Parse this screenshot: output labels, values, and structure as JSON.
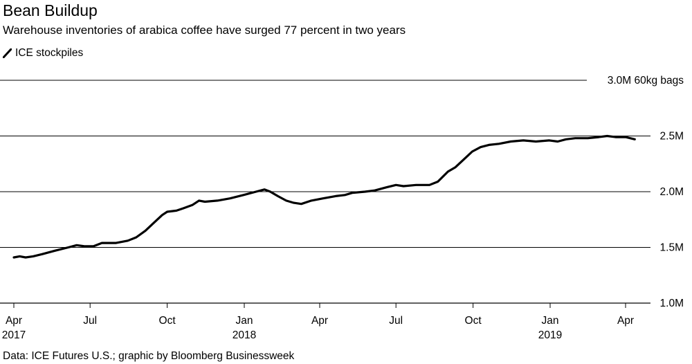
{
  "header": {
    "title": "Bean Buildup",
    "subtitle": "Warehouse inventories of arabica coffee have surged 77 percent in two years"
  },
  "legend": {
    "label": "ICE stockpiles",
    "color": "#000000",
    "icon": "line-swatch-icon"
  },
  "source": "Data: ICE Futures U.S.; graphic by Bloomberg Businessweek",
  "chart_data": {
    "type": "line",
    "title": "Bean Buildup",
    "subtitle": "Warehouse inventories of arabica coffee have surged 77 percent in two years",
    "ylim": [
      1.0,
      3.0
    ],
    "y_ticks": [
      {
        "value": 3.0,
        "label": "3.0M 60kg bags"
      },
      {
        "value": 2.5,
        "label": "2.5M"
      },
      {
        "value": 2.0,
        "label": "2.0M"
      },
      {
        "value": 1.5,
        "label": "1.5M"
      },
      {
        "value": 1.0,
        "label": "1.0M"
      }
    ],
    "x_ticks": [
      {
        "date": "2017-04",
        "label": "Apr",
        "year": "2017"
      },
      {
        "date": "2017-07",
        "label": "Jul",
        "year": ""
      },
      {
        "date": "2017-10",
        "label": "Oct",
        "year": ""
      },
      {
        "date": "2018-01",
        "label": "Jan",
        "year": "2018"
      },
      {
        "date": "2018-04",
        "label": "Apr",
        "year": ""
      },
      {
        "date": "2018-07",
        "label": "Jul",
        "year": ""
      },
      {
        "date": "2018-10",
        "label": "Oct",
        "year": ""
      },
      {
        "date": "2019-01",
        "label": "Jan",
        "year": "2019"
      },
      {
        "date": "2019-04",
        "label": "Apr",
        "year": ""
      }
    ],
    "grid": true,
    "legend_position": "top-left",
    "series": [
      {
        "name": "ICE stockpiles",
        "color": "#000000",
        "points": [
          [
            "2017-04-01",
            1.41
          ],
          [
            "2017-04-08",
            1.42
          ],
          [
            "2017-04-15",
            1.41
          ],
          [
            "2017-04-24",
            1.42
          ],
          [
            "2017-05-05",
            1.44
          ],
          [
            "2017-05-20",
            1.47
          ],
          [
            "2017-06-05",
            1.5
          ],
          [
            "2017-06-15",
            1.52
          ],
          [
            "2017-06-25",
            1.51
          ],
          [
            "2017-07-05",
            1.51
          ],
          [
            "2017-07-15",
            1.54
          ],
          [
            "2017-08-01",
            1.54
          ],
          [
            "2017-08-15",
            1.56
          ],
          [
            "2017-08-25",
            1.59
          ],
          [
            "2017-09-05",
            1.65
          ],
          [
            "2017-09-15",
            1.72
          ],
          [
            "2017-09-25",
            1.79
          ],
          [
            "2017-10-01",
            1.82
          ],
          [
            "2017-10-12",
            1.83
          ],
          [
            "2017-10-20",
            1.85
          ],
          [
            "2017-10-31",
            1.88
          ],
          [
            "2017-11-08",
            1.92
          ],
          [
            "2017-11-15",
            1.91
          ],
          [
            "2017-11-30",
            1.92
          ],
          [
            "2017-12-15",
            1.94
          ],
          [
            "2017-12-31",
            1.97
          ],
          [
            "2018-01-15",
            2.0
          ],
          [
            "2018-01-25",
            2.02
          ],
          [
            "2018-02-01",
            2.0
          ],
          [
            "2018-02-10",
            1.96
          ],
          [
            "2018-02-20",
            1.92
          ],
          [
            "2018-03-01",
            1.9
          ],
          [
            "2018-03-10",
            1.89
          ],
          [
            "2018-03-22",
            1.92
          ],
          [
            "2018-04-05",
            1.94
          ],
          [
            "2018-04-20",
            1.96
          ],
          [
            "2018-05-01",
            1.97
          ],
          [
            "2018-05-10",
            1.99
          ],
          [
            "2018-05-25",
            2.0
          ],
          [
            "2018-06-05",
            2.01
          ],
          [
            "2018-06-20",
            2.04
          ],
          [
            "2018-07-01",
            2.06
          ],
          [
            "2018-07-10",
            2.05
          ],
          [
            "2018-07-25",
            2.06
          ],
          [
            "2018-08-10",
            2.06
          ],
          [
            "2018-08-20",
            2.09
          ],
          [
            "2018-09-01",
            2.18
          ],
          [
            "2018-09-10",
            2.22
          ],
          [
            "2018-09-20",
            2.29
          ],
          [
            "2018-09-30",
            2.36
          ],
          [
            "2018-10-10",
            2.4
          ],
          [
            "2018-10-20",
            2.42
          ],
          [
            "2018-11-01",
            2.43
          ],
          [
            "2018-11-15",
            2.45
          ],
          [
            "2018-11-30",
            2.46
          ],
          [
            "2018-12-15",
            2.45
          ],
          [
            "2018-12-31",
            2.46
          ],
          [
            "2019-01-10",
            2.45
          ],
          [
            "2019-01-20",
            2.47
          ],
          [
            "2019-01-31",
            2.48
          ],
          [
            "2019-02-15",
            2.48
          ],
          [
            "2019-02-28",
            2.49
          ],
          [
            "2019-03-10",
            2.5
          ],
          [
            "2019-03-20",
            2.49
          ],
          [
            "2019-04-01",
            2.49
          ],
          [
            "2019-04-12",
            2.47
          ]
        ]
      }
    ]
  }
}
